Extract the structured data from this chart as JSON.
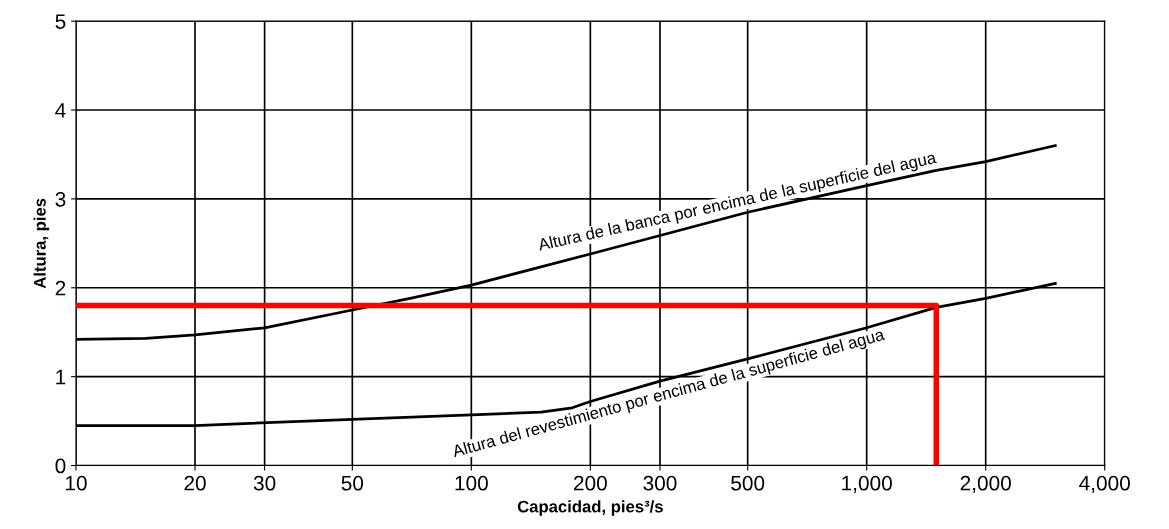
{
  "chart_data": {
    "type": "line",
    "xlabel": "Capacidad, pies³/s",
    "ylabel": "Altura, pies",
    "log": "x",
    "series": [
      {
        "name": "Altura de la banca por encima de la superficie del agua",
        "color": "#000000",
        "x": [
          10,
          15,
          20,
          30,
          50,
          70,
          100,
          200,
          500,
          1000,
          1500,
          2000,
          3000
        ],
        "values": [
          1.42,
          1.43,
          1.47,
          1.55,
          1.75,
          1.88,
          2.03,
          2.38,
          2.85,
          3.15,
          3.32,
          3.42,
          3.6
        ]
      },
      {
        "name": "Altura del revestimiento por encima de la superficie del agua",
        "color": "#000000",
        "x": [
          10,
          20,
          50,
          100,
          150,
          180,
          200,
          300,
          500,
          1000,
          1500,
          2000,
          3000
        ],
        "values": [
          0.45,
          0.45,
          0.52,
          0.57,
          0.6,
          0.65,
          0.72,
          0.95,
          1.2,
          1.55,
          1.78,
          1.88,
          2.05
        ]
      },
      {
        "color": "#ff0000",
        "x": [
          10,
          1500,
          1500
        ],
        "values": [
          1.8,
          1.8,
          0
        ]
      }
    ],
    "xlim": [
      10,
      4000
    ],
    "ylim": [
      0,
      5
    ],
    "xticks": [
      10,
      20,
      30,
      50,
      100,
      200,
      300,
      500,
      {
        "value": 1000,
        "label": "1,000"
      },
      {
        "value": 2000,
        "label": "2,000"
      },
      {
        "value": 4000,
        "label": "4,000"
      }
    ],
    "yticks": [
      0,
      1,
      2,
      3,
      4,
      5
    ],
    "grid": true,
    "legend": false,
    "marker": "none",
    "line_style": "solid"
  }
}
